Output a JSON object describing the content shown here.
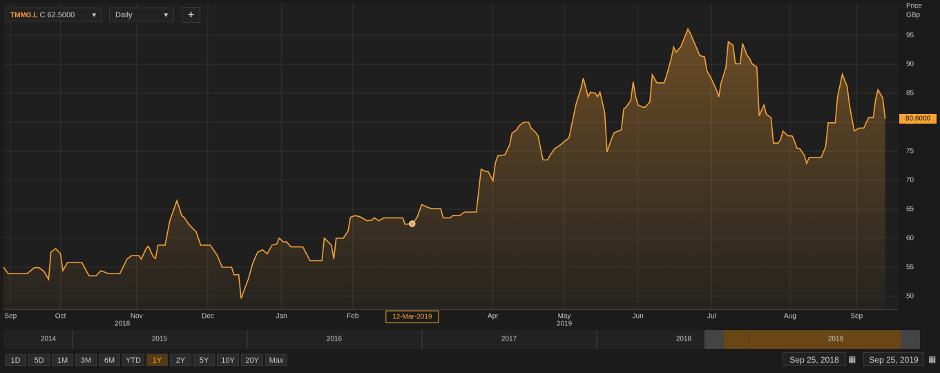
{
  "toolbar": {
    "ticker": "TMMG.L",
    "price_tag": "C",
    "interval": "Daily",
    "add": "+"
  },
  "chart_data": {
    "type": "line",
    "y_axis_label": "Price",
    "y_axis_unit": "GBp",
    "x": [
      0,
      2,
      10,
      13,
      15,
      17,
      19,
      20,
      22,
      24,
      25,
      27,
      33,
      36,
      39,
      41,
      44,
      49,
      52,
      54,
      57,
      58,
      60,
      61,
      63,
      64,
      65,
      68,
      70,
      73,
      75,
      76,
      78,
      80,
      81,
      83,
      87,
      90,
      92,
      96,
      97,
      99,
      100,
      103,
      105,
      107,
      109,
      111,
      113,
      115,
      116,
      118,
      119,
      121,
      126,
      129,
      134,
      135,
      138,
      139,
      140,
      143,
      145,
      146,
      148,
      150,
      153,
      155,
      156,
      158,
      160,
      168,
      169,
      172,
      174,
      176,
      178,
      180,
      184,
      185,
      188,
      189,
      192,
      194,
      199,
      201,
      203,
      204,
      206,
      207,
      208,
      211,
      213,
      214,
      216,
      217,
      219,
      221,
      222,
      224,
      225,
      227,
      229,
      230,
      232,
      233,
      235,
      236,
      238,
      241,
      243,
      244,
      246,
      247,
      249,
      250,
      251,
      253,
      254,
      256,
      257,
      260,
      261,
      262,
      264,
      265,
      266,
      267,
      269,
      270,
      272,
      273,
      275,
      276,
      278,
      279,
      281,
      282,
      283,
      285,
      288,
      289,
      292,
      293,
      295,
      296,
      298,
      300,
      301,
      302,
      304,
      305,
      307,
      308,
      310,
      311,
      313,
      314,
      315,
      317,
      318,
      320,
      321,
      323,
      324,
      326,
      327,
      328,
      330,
      332,
      334,
      335,
      337,
      338,
      339,
      344,
      346,
      347,
      350,
      351,
      353,
      355,
      356,
      358,
      360,
      362,
      364,
      366,
      367,
      368,
      370,
      371
    ],
    "series": [
      {
        "name": "TMMG.L",
        "color": "#f7a233",
        "values": [
          55.0,
          53.9,
          53.9,
          54.9,
          54.9,
          54.3,
          52.9,
          57.6,
          58.2,
          57.3,
          54.4,
          55.8,
          55.8,
          53.5,
          53.5,
          54.4,
          53.9,
          53.9,
          56.4,
          57.0,
          57.0,
          56.4,
          58.2,
          58.6,
          56.8,
          56.5,
          58.8,
          58.8,
          63.0,
          66.5,
          63.9,
          63.6,
          62.4,
          61.5,
          61.2,
          58.8,
          58.8,
          57.0,
          55.0,
          55.0,
          53.7,
          53.7,
          49.6,
          52.9,
          55.8,
          57.6,
          58.0,
          57.3,
          58.8,
          59.0,
          60.0,
          59.3,
          59.4,
          58.5,
          58.5,
          56.1,
          56.1,
          60.0,
          58.8,
          56.4,
          60.0,
          60.0,
          61.2,
          63.6,
          63.9,
          63.7,
          63.0,
          63.1,
          63.5,
          63.0,
          63.5,
          63.5,
          62.4,
          62.5,
          63.5,
          65.8,
          65.4,
          65.1,
          65.1,
          63.5,
          63.5,
          63.9,
          63.9,
          64.5,
          64.5,
          71.9,
          71.5,
          71.5,
          69.9,
          73.0,
          74.2,
          74.4,
          76.1,
          78.1,
          78.7,
          79.4,
          80.0,
          80.0,
          79.0,
          78.2,
          77.6,
          73.5,
          73.5,
          74.3,
          75.5,
          75.7,
          76.3,
          76.7,
          77.3,
          83.2,
          85.8,
          87.6,
          84.4,
          85.2,
          85.0,
          84.4,
          85.2,
          81.7,
          74.9,
          77.3,
          78.2,
          78.7,
          82.3,
          82.6,
          83.8,
          87.0,
          84.4,
          83.0,
          82.6,
          82.6,
          83.5,
          88.2,
          86.8,
          86.8,
          86.8,
          88.0,
          91.0,
          93.0,
          92.1,
          93.0,
          96.1,
          95.4,
          92.5,
          91.5,
          91.3,
          88.9,
          87.4,
          85.6,
          84.4,
          86.8,
          89.4,
          93.9,
          93.3,
          90.1,
          90.1,
          93.6,
          91.5,
          91.0,
          90.1,
          89.5,
          81.1,
          83.0,
          81.4,
          80.8,
          76.4,
          76.4,
          77.0,
          78.5,
          77.7,
          77.6,
          75.5,
          75.5,
          74.3,
          72.9,
          73.9,
          73.9,
          75.8,
          79.9,
          79.9,
          84.4,
          88.3,
          86.2,
          83.0,
          78.5,
          79.0,
          79.0,
          80.8,
          80.8,
          84.0,
          85.6,
          84.2,
          80.6
        ]
      }
    ],
    "last_value_label": "80.6000",
    "cursor": {
      "x": 172,
      "value": 62.5,
      "value_label": "62.5000",
      "date_label": "12-Mar-2019"
    },
    "xlim": [
      0,
      372
    ],
    "ylim": [
      47.7,
      100.5
    ],
    "xticks": [
      {
        "value": 3,
        "label": "Sep"
      },
      {
        "value": 24,
        "label": "Oct"
      },
      {
        "value": 56,
        "label": "Nov"
      },
      {
        "value": 86,
        "label": "Dec"
      },
      {
        "value": 117,
        "label": "Jan"
      },
      {
        "value": 147,
        "label": "Feb"
      },
      {
        "value": 206,
        "label": "Apr"
      },
      {
        "value": 236,
        "label": "May"
      },
      {
        "value": 267,
        "label": "Jun"
      },
      {
        "value": 298,
        "label": "Jul"
      },
      {
        "value": 331,
        "label": "Aug"
      },
      {
        "value": 359,
        "label": "Sep"
      }
    ],
    "x_year_ticks": [
      {
        "value": 50,
        "label": "2018"
      },
      {
        "value": 236,
        "label": "2019"
      }
    ],
    "yticks": [
      50,
      55,
      60,
      65,
      70,
      75,
      80,
      85,
      90,
      95
    ],
    "grid": true
  },
  "navigator": {
    "years": [
      "2014",
      "2015",
      "2016",
      "2017",
      "2018",
      "2019"
    ]
  },
  "range_buttons": {
    "items": [
      "1D",
      "5D",
      "1M",
      "3M",
      "6M",
      "YTD",
      "1Y",
      "2Y",
      "5Y",
      "10Y",
      "20Y",
      "Max"
    ],
    "active": "1Y"
  },
  "date_range": {
    "from": "Sep 25, 2018",
    "to": "Sep 25, 2019"
  }
}
